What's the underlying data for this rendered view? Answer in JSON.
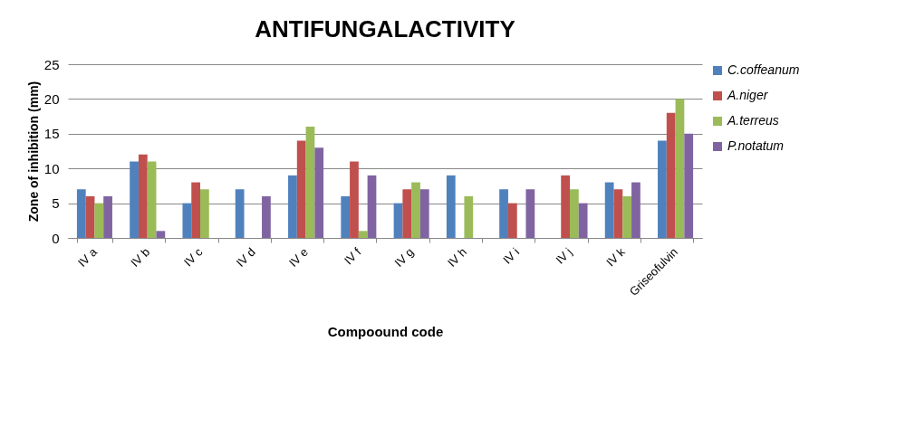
{
  "chart_data": {
    "type": "bar",
    "title": "ANTIFUNGALACTIVITY",
    "xlabel": "Compoound code",
    "ylabel": "Zone of inhibition (mm)",
    "categories": [
      "IV a",
      "IV b",
      "IV c",
      "IV d",
      "IV e",
      "IV f",
      "IV g",
      "IV h",
      "IV i",
      "IV j",
      "IV k",
      "Griseofulvin"
    ],
    "series": [
      {
        "name": "C.coffeanum",
        "color": "#4f81bd",
        "values": [
          7,
          11,
          5,
          7,
          9,
          6,
          5,
          9,
          7,
          null,
          8,
          14
        ]
      },
      {
        "name": "A.niger",
        "color": "#c0504d",
        "values": [
          6,
          12,
          8,
          null,
          14,
          11,
          7,
          null,
          5,
          9,
          7,
          18
        ]
      },
      {
        "name": "A.terreus",
        "color": "#9bbb59",
        "values": [
          5,
          11,
          7,
          null,
          16,
          1,
          8,
          6,
          null,
          7,
          6,
          20
        ]
      },
      {
        "name": "P.notatum",
        "color": "#8064a2",
        "values": [
          6,
          1,
          null,
          6,
          13,
          9,
          7,
          null,
          7,
          5,
          8,
          15
        ]
      }
    ],
    "ylim": [
      0,
      25
    ],
    "yticks": [
      0,
      5,
      10,
      15,
      20,
      25
    ],
    "grid": "y",
    "legend": "right"
  }
}
